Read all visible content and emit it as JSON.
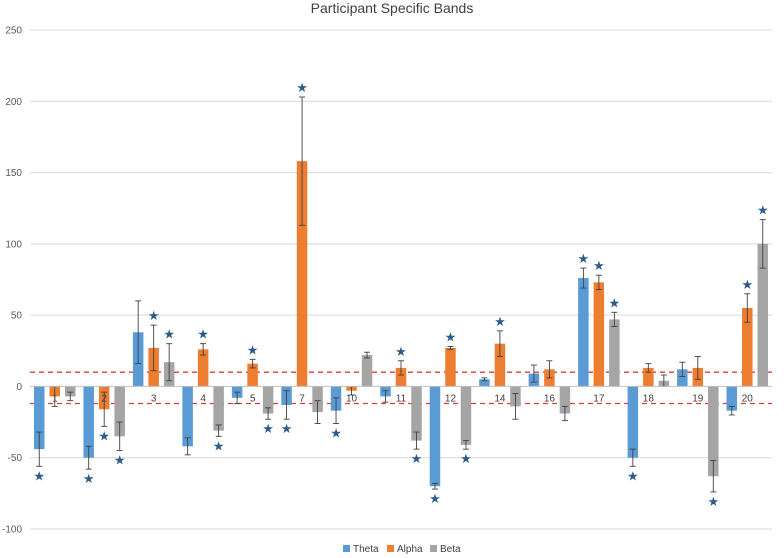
{
  "chart_data": {
    "type": "bar",
    "title": "Participant Specific Bands",
    "categories": [
      "1",
      "2",
      "3",
      "4",
      "5",
      "7",
      "10",
      "11",
      "12",
      "14",
      "16",
      "17",
      "18",
      "19",
      "20"
    ],
    "series": [
      {
        "name": "Theta",
        "color": "#5B9BD5",
        "values": [
          -44,
          -50,
          38,
          -42,
          -8,
          -13,
          -17,
          -7,
          -70,
          5,
          9,
          76,
          -50,
          12,
          -17
        ],
        "errors": [
          12,
          8,
          22,
          6,
          4,
          10,
          9,
          4,
          2,
          1,
          6,
          7,
          6,
          5,
          3
        ],
        "stars": [
          true,
          true,
          false,
          false,
          false,
          true,
          true,
          false,
          true,
          false,
          false,
          true,
          true,
          false,
          false
        ]
      },
      {
        "name": "Alpha",
        "color": "#ED7D31",
        "values": [
          -7,
          -16,
          27,
          26,
          16,
          158,
          -3,
          13,
          27,
          30,
          12,
          73,
          13,
          13,
          55
        ],
        "errors": [
          7,
          12,
          16,
          4,
          3,
          45,
          3,
          5,
          1,
          9,
          6,
          5,
          3,
          8,
          10
        ],
        "stars": [
          false,
          true,
          true,
          true,
          true,
          true,
          false,
          true,
          true,
          true,
          false,
          true,
          false,
          false,
          true
        ]
      },
      {
        "name": "Beta",
        "color": "#A5A5A5",
        "values": [
          -7,
          -35,
          17,
          -31,
          -19,
          -18,
          22,
          -38,
          -41,
          -14,
          -19,
          47,
          4,
          -63,
          100
        ],
        "errors": [
          3,
          10,
          13,
          4,
          4,
          8,
          2,
          6,
          3,
          9,
          5,
          5,
          4,
          11,
          17
        ],
        "stars": [
          false,
          true,
          true,
          true,
          true,
          false,
          false,
          true,
          true,
          false,
          false,
          true,
          false,
          true,
          true
        ]
      }
    ],
    "ylim": [
      -100,
      250
    ],
    "yticks": [
      -100,
      -50,
      0,
      50,
      100,
      150,
      200,
      250
    ],
    "reference_lines": [
      10,
      -12
    ],
    "reference_line_color": "#E03C31",
    "star_color": "#2E5C8A",
    "grid": true,
    "legend_position": "bottom"
  }
}
